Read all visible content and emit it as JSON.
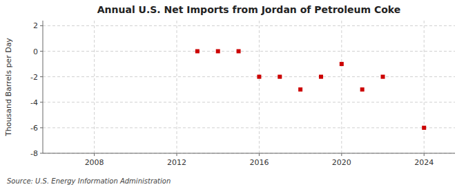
{
  "chart_data": {
    "type": "scatter",
    "title": "Annual U.S. Net Imports from Jordan of Petroleum Coke",
    "ylabel": "Thousand Barrels per Day",
    "annotation": "Source: U.S. Energy Information Administration",
    "x": [
      2013,
      2014,
      2015,
      2016,
      2017,
      2018,
      2019,
      2020,
      2021,
      2022,
      2024
    ],
    "values": [
      0,
      0,
      0,
      -2,
      -2,
      -3,
      -2,
      -1,
      -3,
      -2,
      -6
    ],
    "color": "#cc0000",
    "marker": "square",
    "xlim": [
      2005.5,
      2025.5
    ],
    "ylim": [
      -8,
      2.4
    ],
    "xticks": [
      2008,
      2012,
      2016,
      2020,
      2024
    ],
    "yticks": [
      -8,
      -6,
      -4,
      -2,
      0,
      2
    ],
    "grid": true
  }
}
